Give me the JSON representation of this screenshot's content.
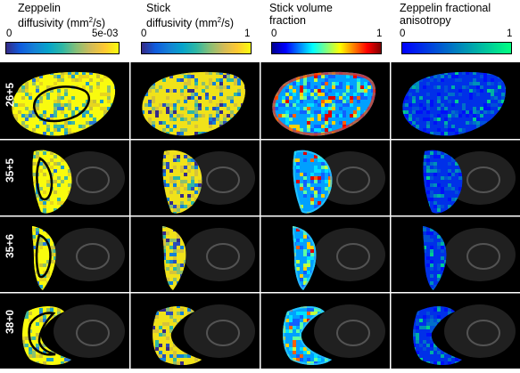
{
  "panels": [
    {
      "title_line1": "Zeppelin",
      "title_line2a": "diffusivity (mm",
      "sup": "2",
      "title_line2b": "/s)",
      "tick_min": "0",
      "tick_max": "5e-03",
      "colormap": "parula"
    },
    {
      "title_line1": "Stick",
      "title_line2a": "diffusivity (mm",
      "sup": "2",
      "title_line2b": "/s)",
      "tick_min": "0",
      "tick_max": "1",
      "colormap": "parula"
    },
    {
      "title_line1": "Stick volume",
      "title_line2a": "fraction",
      "sup": "",
      "title_line2b": "",
      "tick_min": "0",
      "tick_max": "1",
      "colormap": "jet"
    },
    {
      "title_line1": "Zeppelin fractional",
      "title_line2a": "anisotropy",
      "sup": "",
      "title_line2b": "",
      "tick_min": "0",
      "tick_max": "1",
      "colormap": "winter"
    }
  ],
  "rows": [
    {
      "label": "26+5"
    },
    {
      "label": "35+5"
    },
    {
      "label": "35+6"
    },
    {
      "label": "38+0"
    }
  ],
  "colors": {
    "parula": [
      "#352a87",
      "#0f5cdd",
      "#1481d6",
      "#06a4ca",
      "#2eb7a4",
      "#87bf77",
      "#d1bb59",
      "#fec832",
      "#f9fb0e"
    ],
    "jet": [
      "#00008f",
      "#0000ff",
      "#0080ff",
      "#00ffff",
      "#80ff80",
      "#ffff00",
      "#ff8000",
      "#ff0000",
      "#800000"
    ],
    "winter": [
      "#0000ff",
      "#0040df",
      "#0080bf",
      "#00c0a0",
      "#00ff80"
    ]
  }
}
